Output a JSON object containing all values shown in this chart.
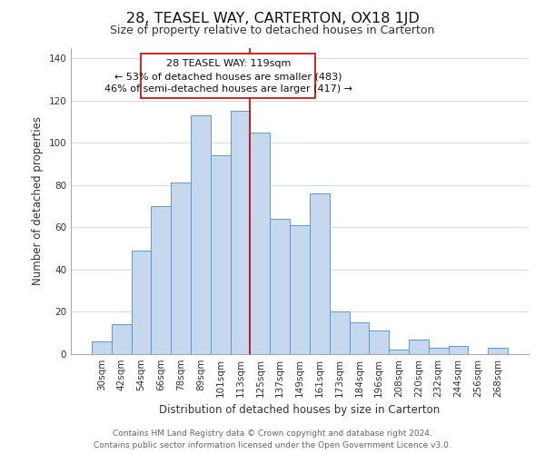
{
  "title": "28, TEASEL WAY, CARTERTON, OX18 1JD",
  "subtitle": "Size of property relative to detached houses in Carterton",
  "xlabel": "Distribution of detached houses by size in Carterton",
  "ylabel": "Number of detached properties",
  "bar_labels": [
    "30sqm",
    "42sqm",
    "54sqm",
    "66sqm",
    "78sqm",
    "89sqm",
    "101sqm",
    "113sqm",
    "125sqm",
    "137sqm",
    "149sqm",
    "161sqm",
    "173sqm",
    "184sqm",
    "196sqm",
    "208sqm",
    "220sqm",
    "232sqm",
    "244sqm",
    "256sqm",
    "268sqm"
  ],
  "bar_values": [
    6,
    14,
    49,
    70,
    81,
    113,
    94,
    115,
    105,
    64,
    61,
    76,
    20,
    15,
    11,
    2,
    7,
    3,
    4,
    0,
    3
  ],
  "bar_color": "#c5d8ed",
  "bar_edge_color": "#5b9bd5",
  "ylim": [
    0,
    145
  ],
  "yticks": [
    0,
    20,
    40,
    60,
    80,
    100,
    120,
    140
  ],
  "annotation_text_line1": "28 TEASEL WAY: 119sqm",
  "annotation_text_line2": "← 53% of detached houses are smaller (483)",
  "annotation_text_line3": "46% of semi-detached houses are larger (417) →",
  "property_line_color": "#cc0000",
  "footer_line1": "Contains HM Land Registry data © Crown copyright and database right 2024.",
  "footer_line2": "Contains public sector information licensed under the Open Government Licence v3.0.",
  "background_color": "#ffffff",
  "grid_color": "#d0dce8",
  "title_fontsize": 11.5,
  "subtitle_fontsize": 9,
  "axis_label_fontsize": 8.5,
  "tick_fontsize": 7.5,
  "annotation_fontsize": 8,
  "footer_fontsize": 6.5
}
